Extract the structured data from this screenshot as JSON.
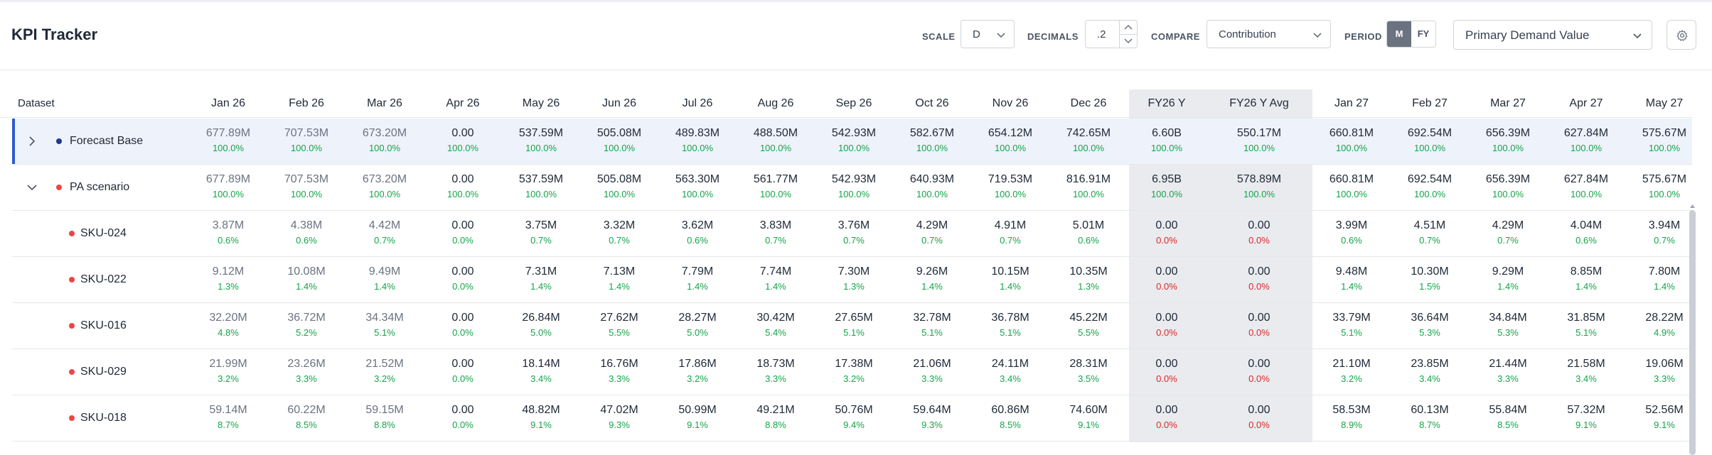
{
  "app": {
    "title": "KPI Tracker"
  },
  "controls": {
    "scale": {
      "label": "SCALE",
      "value": "D"
    },
    "decimals": {
      "label": "DECIMALS",
      "value": ".2"
    },
    "compare": {
      "label": "COMPARE",
      "value": "Contribution"
    },
    "period": {
      "label": "PERIOD",
      "options": [
        "M",
        "FY"
      ],
      "selected": "M"
    },
    "measure": {
      "value": "Primary Demand Value"
    },
    "settings_icon": "gear-icon"
  },
  "colors": {
    "selected_bar": "#2d5bd0",
    "forecast_dot": "#1e3a8a",
    "scenario_dot": "#ef4444",
    "positive_pct": "#16a34a",
    "zero_pct": "#dc2626",
    "fy_band": "#e9ebef"
  },
  "table": {
    "dataset_header": "Dataset",
    "columns": [
      "Jan 26",
      "Feb 26",
      "Mar 26",
      "Apr 26",
      "May 26",
      "Jun 26",
      "Jul 26",
      "Aug 26",
      "Sep 26",
      "Oct 26",
      "Nov 26",
      "Dec 26",
      "FY26 Y",
      "FY26 Y Avg",
      "Jan 27",
      "Feb 27",
      "Mar 27",
      "Apr 27",
      "May 27"
    ],
    "rows": [
      {
        "name": "Forecast Base",
        "expander": "chevron-right-icon",
        "values": [
          "677.89M",
          "707.53M",
          "673.20M",
          "0.00",
          "537.59M",
          "505.08M",
          "489.83M",
          "488.50M",
          "542.93M",
          "582.67M",
          "654.12M",
          "742.65M",
          "6.60B",
          "550.17M",
          "660.81M",
          "692.54M",
          "656.39M",
          "627.84M",
          "575.67M"
        ],
        "pcts": [
          "100.0%",
          "100.0%",
          "100.0%",
          "100.0%",
          "100.0%",
          "100.0%",
          "100.0%",
          "100.0%",
          "100.0%",
          "100.0%",
          "100.0%",
          "100.0%",
          "100.0%",
          "100.0%",
          "100.0%",
          "100.0%",
          "100.0%",
          "100.0%",
          "100.0%"
        ]
      },
      {
        "name": "PA scenario",
        "expander": "chevron-down-icon",
        "values": [
          "677.89M",
          "707.53M",
          "673.20M",
          "0.00",
          "537.59M",
          "505.08M",
          "563.30M",
          "561.77M",
          "542.93M",
          "640.93M",
          "719.53M",
          "816.91M",
          "6.95B",
          "578.89M",
          "660.81M",
          "692.54M",
          "656.39M",
          "627.84M",
          "575.67M"
        ],
        "pcts": [
          "100.0%",
          "100.0%",
          "100.0%",
          "100.0%",
          "100.0%",
          "100.0%",
          "100.0%",
          "100.0%",
          "100.0%",
          "100.0%",
          "100.0%",
          "100.0%",
          "100.0%",
          "100.0%",
          "100.0%",
          "100.0%",
          "100.0%",
          "100.0%",
          "100.0%"
        ]
      },
      {
        "name": "SKU-024",
        "values": [
          "3.87M",
          "4.38M",
          "4.42M",
          "0.00",
          "3.75M",
          "3.32M",
          "3.62M",
          "3.83M",
          "3.76M",
          "4.29M",
          "4.91M",
          "5.01M",
          "0.00",
          "0.00",
          "3.99M",
          "4.51M",
          "4.29M",
          "4.04M",
          "3.94M"
        ],
        "pcts": [
          "0.6%",
          "0.6%",
          "0.7%",
          "0.0%",
          "0.7%",
          "0.7%",
          "0.6%",
          "0.7%",
          "0.7%",
          "0.7%",
          "0.7%",
          "0.6%",
          "0.0%",
          "0.0%",
          "0.6%",
          "0.7%",
          "0.7%",
          "0.6%",
          "0.7%"
        ]
      },
      {
        "name": "SKU-022",
        "values": [
          "9.12M",
          "10.08M",
          "9.49M",
          "0.00",
          "7.31M",
          "7.13M",
          "7.79M",
          "7.74M",
          "7.30M",
          "9.26M",
          "10.15M",
          "10.35M",
          "0.00",
          "0.00",
          "9.48M",
          "10.30M",
          "9.29M",
          "8.85M",
          "7.80M"
        ],
        "pcts": [
          "1.3%",
          "1.4%",
          "1.4%",
          "0.0%",
          "1.4%",
          "1.4%",
          "1.4%",
          "1.4%",
          "1.3%",
          "1.4%",
          "1.4%",
          "1.3%",
          "0.0%",
          "0.0%",
          "1.4%",
          "1.5%",
          "1.4%",
          "1.4%",
          "1.4%"
        ]
      },
      {
        "name": "SKU-016",
        "values": [
          "32.20M",
          "36.72M",
          "34.34M",
          "0.00",
          "26.84M",
          "27.62M",
          "28.27M",
          "30.42M",
          "27.65M",
          "32.78M",
          "36.78M",
          "45.22M",
          "0.00",
          "0.00",
          "33.79M",
          "36.64M",
          "34.84M",
          "31.85M",
          "28.22M"
        ],
        "pcts": [
          "4.8%",
          "5.2%",
          "5.1%",
          "0.0%",
          "5.0%",
          "5.5%",
          "5.0%",
          "5.4%",
          "5.1%",
          "5.1%",
          "5.1%",
          "5.5%",
          "0.0%",
          "0.0%",
          "5.1%",
          "5.3%",
          "5.3%",
          "5.1%",
          "4.9%"
        ]
      },
      {
        "name": "SKU-029",
        "values": [
          "21.99M",
          "23.26M",
          "21.52M",
          "0.00",
          "18.14M",
          "16.76M",
          "17.86M",
          "18.73M",
          "17.38M",
          "21.06M",
          "24.11M",
          "28.31M",
          "0.00",
          "0.00",
          "21.10M",
          "23.85M",
          "21.44M",
          "21.58M",
          "19.06M"
        ],
        "pcts": [
          "3.2%",
          "3.3%",
          "3.2%",
          "0.0%",
          "3.4%",
          "3.3%",
          "3.2%",
          "3.3%",
          "3.2%",
          "3.3%",
          "3.4%",
          "3.5%",
          "0.0%",
          "0.0%",
          "3.2%",
          "3.4%",
          "3.3%",
          "3.4%",
          "3.3%"
        ]
      },
      {
        "name": "SKU-018",
        "values": [
          "59.14M",
          "60.22M",
          "59.15M",
          "0.00",
          "48.82M",
          "47.02M",
          "50.99M",
          "49.21M",
          "50.76M",
          "59.64M",
          "60.86M",
          "74.60M",
          "0.00",
          "0.00",
          "58.53M",
          "60.13M",
          "55.84M",
          "57.32M",
          "52.56M"
        ],
        "pcts": [
          "8.7%",
          "8.5%",
          "8.8%",
          "0.0%",
          "9.1%",
          "9.3%",
          "9.1%",
          "8.8%",
          "9.4%",
          "9.3%",
          "8.5%",
          "9.1%",
          "0.0%",
          "0.0%",
          "8.9%",
          "8.7%",
          "8.5%",
          "9.1%",
          "9.1%"
        ]
      }
    ]
  }
}
